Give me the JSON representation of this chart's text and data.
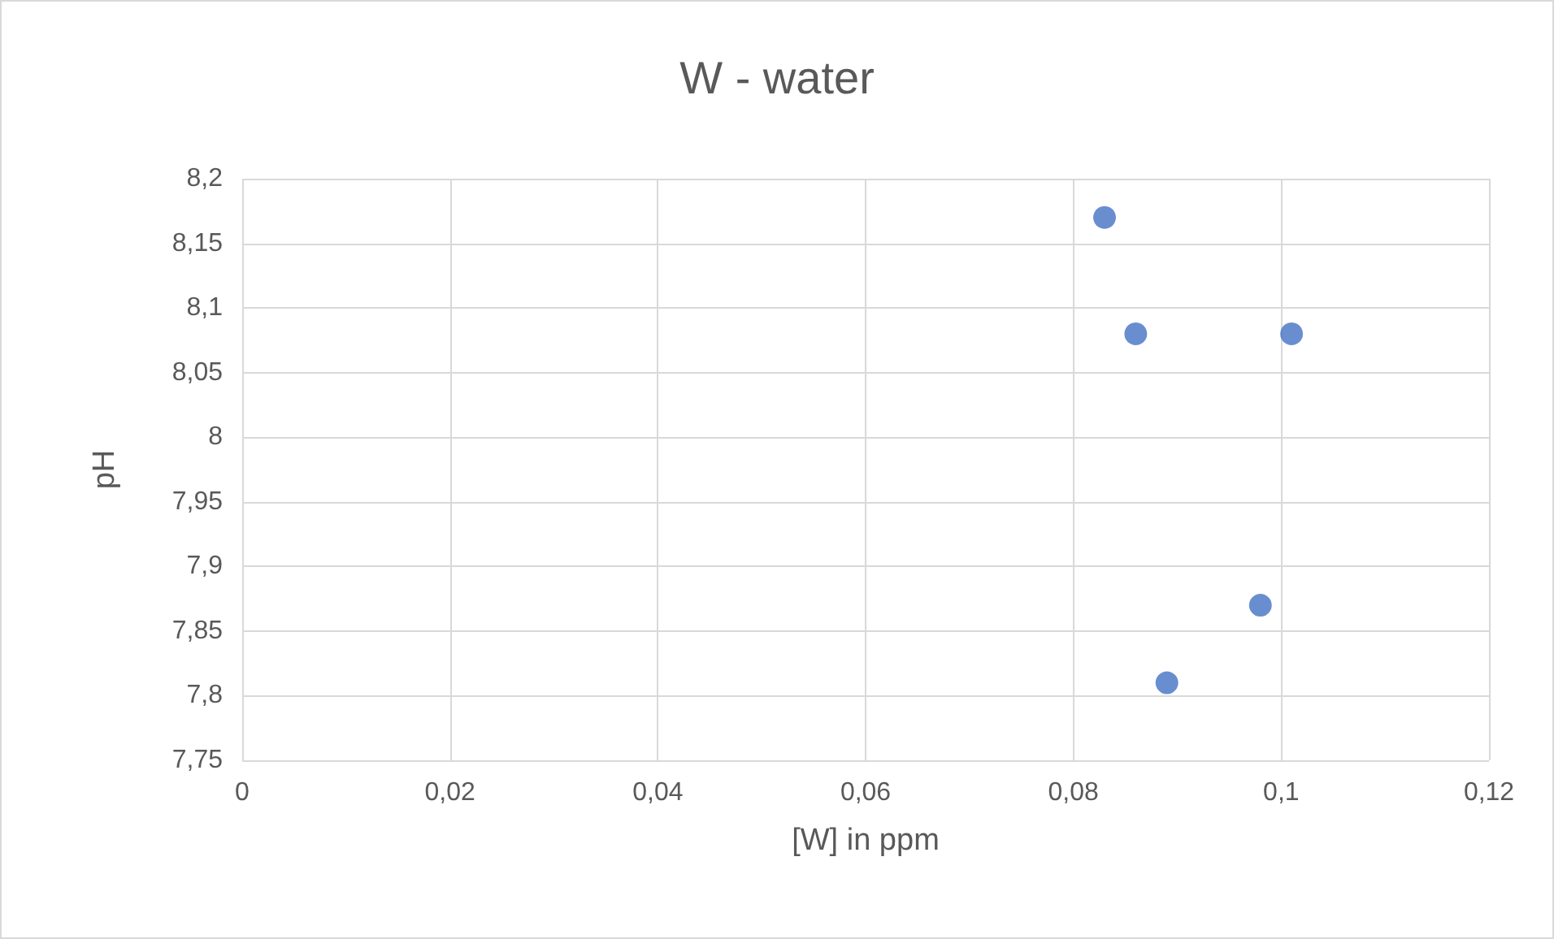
{
  "chart_data": {
    "type": "scatter",
    "title": "W - water",
    "xlabel": "[W] in ppm",
    "ylabel": "pH",
    "x": [
      0.083,
      0.086,
      0.101,
      0.098,
      0.089
    ],
    "series": [
      {
        "color": "#4472c4",
        "values": [
          8.17,
          8.08,
          8.08,
          7.87,
          7.81
        ]
      }
    ],
    "xlim": [
      0,
      0.12
    ],
    "xticks": [
      0,
      {
        "value": 0.02,
        "label": "0,02"
      },
      {
        "value": 0.04,
        "label": "0,04"
      },
      {
        "value": 0.06,
        "label": "0,06"
      },
      {
        "value": 0.08,
        "label": "0,08"
      },
      {
        "value": 0.1,
        "label": "0,1"
      },
      {
        "value": 0.12,
        "label": "0,12"
      }
    ],
    "ylim": [
      7.75,
      8.2
    ],
    "yticks": [
      {
        "value": 7.75,
        "label": "7,75"
      },
      {
        "value": 7.8,
        "label": "7,8"
      },
      {
        "value": 7.85,
        "label": "7,85"
      },
      {
        "value": 7.9,
        "label": "7,9"
      },
      {
        "value": 7.95,
        "label": "7,95"
      },
      8,
      {
        "value": 8.05,
        "label": "8,05"
      },
      {
        "value": 8.1,
        "label": "8,1"
      },
      {
        "value": 8.15,
        "label": "8,15"
      },
      {
        "value": 8.2,
        "label": "8,2"
      }
    ],
    "grid": true,
    "marker": "circle"
  }
}
